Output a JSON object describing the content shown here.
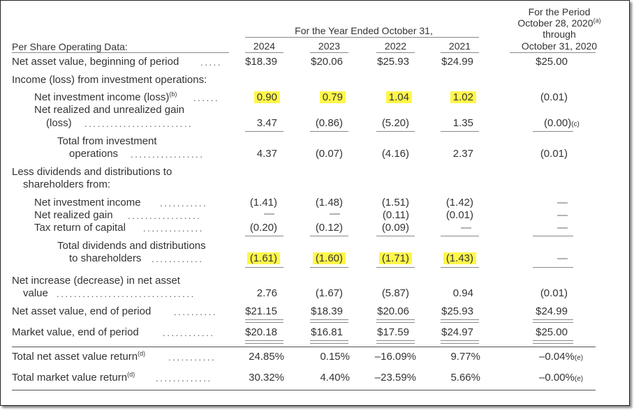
{
  "header": {
    "group_label": "For the Year Ended October 31,",
    "period_label_1": "For the Period",
    "period_label_2": "October 28, 2020",
    "period_label_2_sup": "(a)",
    "period_label_3": "through",
    "period_label_4": "October 31, 2020",
    "years": [
      "2024",
      "2023",
      "2022",
      "2021"
    ],
    "section": "Per Share Operating Data:"
  },
  "rows": {
    "nav_begin": {
      "label": "Net asset value, beginning of period",
      "values": [
        "$18.39",
        "$20.06",
        "$25.93",
        "$24.99",
        "$25.00"
      ]
    },
    "income_head": {
      "label": "Income (loss) from investment operations:"
    },
    "nii": {
      "label": "Net investment income (loss)",
      "sup": "(b)",
      "values": [
        "0.90",
        "0.79",
        "1.04",
        "1.02",
        "(0.01)"
      ]
    },
    "gain": {
      "label_1": "Net realized and unrealized gain",
      "label_2": "(loss)",
      "values": [
        "3.47",
        "(0.86)",
        "(5.20)",
        "1.35",
        "(0.00)"
      ],
      "last_sup": "(c)"
    },
    "total_ops": {
      "label_1": "Total from investment",
      "label_2": "operations",
      "values": [
        "4.37",
        "(0.07)",
        "(4.16)",
        "2.37",
        "(0.01)"
      ]
    },
    "less_head": {
      "label_1": "Less dividends and distributions to",
      "label_2": "shareholders from:"
    },
    "div_nii": {
      "label": "Net investment income",
      "values": [
        "(1.41)",
        "(1.48)",
        "(1.51)",
        "(1.42)",
        "—"
      ]
    },
    "div_gain": {
      "label": "Net realized gain",
      "values": [
        "—",
        "—",
        "(0.11)",
        "(0.01)",
        "—"
      ]
    },
    "div_tax": {
      "label": "Tax return of capital",
      "values": [
        "(0.20)",
        "(0.12)",
        "(0.09)",
        "—",
        "—"
      ]
    },
    "total_div": {
      "label_1": "Total dividends and distributions",
      "label_2": "to shareholders",
      "values": [
        "(1.61)",
        "(1.60)",
        "(1.71)",
        "(1.43)",
        "—"
      ]
    },
    "net_change": {
      "label_1": "Net increase (decrease) in net asset",
      "label_2": "value",
      "values": [
        "2.76",
        "(1.67)",
        "(5.87)",
        "0.94",
        "(0.01)"
      ]
    },
    "nav_end": {
      "label": "Net asset value, end of period",
      "values": [
        "$21.15",
        "$18.39",
        "$20.06",
        "$25.93",
        "$24.99"
      ]
    },
    "mkt_end": {
      "label": "Market value, end of period",
      "values": [
        "$20.18",
        "$16.81",
        "$17.59",
        "$24.97",
        "$25.00"
      ]
    },
    "ret_nav": {
      "label": "Total net asset value return",
      "sup": "(d)",
      "values": [
        "24.85%",
        "0.15%",
        "–16.09%",
        "9.77%",
        "–0.04%"
      ],
      "last_sup": "(e)"
    },
    "ret_mkt": {
      "label": "Total market value return",
      "sup": "(d)",
      "values": [
        "30.32%",
        "4.40%",
        "–23.59%",
        "5.66%",
        "–0.00%"
      ],
      "last_sup": "(e)"
    }
  },
  "style": {
    "highlight": "#fff74a",
    "text": "#333333"
  }
}
